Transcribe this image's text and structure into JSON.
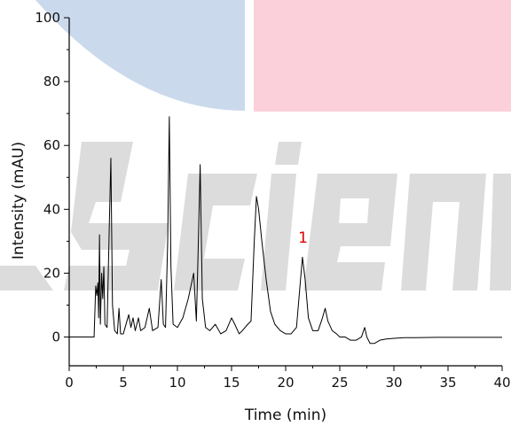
{
  "chart_data": {
    "type": "line",
    "xlabel": "Time (min)",
    "ylabel": "Intensity (mAU)",
    "xlim": [
      0,
      40
    ],
    "ylim": [
      -9,
      100
    ],
    "x_ticks": [
      0,
      5,
      10,
      15,
      20,
      25,
      30,
      35,
      40
    ],
    "y_ticks": [
      0,
      20,
      40,
      60,
      80,
      100
    ],
    "grid": false,
    "legend": "none",
    "line_color": "#000000",
    "annotations": [
      {
        "text": "1",
        "x": 21.6,
        "y": 29,
        "color": "#e00000"
      }
    ],
    "background_watermark": {
      "colors": [
        "#cbd9ec",
        "#fbd0da",
        "#dcdcdc"
      ]
    },
    "series": [
      {
        "points": [
          [
            0,
            0
          ],
          [
            2.3,
            0
          ],
          [
            2.45,
            16
          ],
          [
            2.55,
            13
          ],
          [
            2.65,
            17
          ],
          [
            2.72,
            6
          ],
          [
            2.8,
            32
          ],
          [
            2.88,
            4
          ],
          [
            3.0,
            20
          ],
          [
            3.1,
            12
          ],
          [
            3.2,
            22
          ],
          [
            3.3,
            4
          ],
          [
            3.5,
            3
          ],
          [
            3.7,
            34
          ],
          [
            3.85,
            56
          ],
          [
            4.0,
            10
          ],
          [
            4.2,
            2
          ],
          [
            4.45,
            1
          ],
          [
            4.6,
            9
          ],
          [
            4.75,
            1
          ],
          [
            5.0,
            1
          ],
          [
            5.5,
            7
          ],
          [
            5.7,
            3
          ],
          [
            5.9,
            6
          ],
          [
            6.1,
            2
          ],
          [
            6.4,
            6
          ],
          [
            6.6,
            2
          ],
          [
            7.0,
            3
          ],
          [
            7.4,
            9
          ],
          [
            7.7,
            2
          ],
          [
            8.2,
            3
          ],
          [
            8.5,
            18
          ],
          [
            8.7,
            4
          ],
          [
            8.9,
            3
          ],
          [
            9.1,
            30
          ],
          [
            9.25,
            69
          ],
          [
            9.4,
            22
          ],
          [
            9.6,
            4
          ],
          [
            10.0,
            3
          ],
          [
            10.5,
            6
          ],
          [
            11.0,
            12
          ],
          [
            11.5,
            20
          ],
          [
            11.75,
            5
          ],
          [
            11.9,
            25
          ],
          [
            12.1,
            54
          ],
          [
            12.3,
            12
          ],
          [
            12.6,
            3
          ],
          [
            13.0,
            2
          ],
          [
            13.5,
            4
          ],
          [
            14.0,
            1
          ],
          [
            14.5,
            2
          ],
          [
            15.0,
            6
          ],
          [
            15.3,
            4
          ],
          [
            15.7,
            1
          ],
          [
            16.0,
            2
          ],
          [
            16.5,
            4
          ],
          [
            16.8,
            5
          ],
          [
            17.1,
            30
          ],
          [
            17.3,
            44
          ],
          [
            17.5,
            40
          ],
          [
            17.8,
            30
          ],
          [
            18.2,
            18
          ],
          [
            18.6,
            8
          ],
          [
            19.0,
            4
          ],
          [
            19.5,
            2
          ],
          [
            20.0,
            1
          ],
          [
            20.5,
            1
          ],
          [
            21.0,
            3
          ],
          [
            21.3,
            15
          ],
          [
            21.55,
            25
          ],
          [
            21.8,
            18
          ],
          [
            22.1,
            6
          ],
          [
            22.5,
            2
          ],
          [
            23.0,
            2
          ],
          [
            23.4,
            6
          ],
          [
            23.65,
            9
          ],
          [
            23.9,
            5
          ],
          [
            24.3,
            2
          ],
          [
            24.7,
            1
          ],
          [
            25.0,
            0
          ],
          [
            25.5,
            0
          ],
          [
            26.0,
            -1
          ],
          [
            26.5,
            -1
          ],
          [
            27.0,
            0
          ],
          [
            27.3,
            3
          ],
          [
            27.5,
            0
          ],
          [
            27.8,
            -2
          ],
          [
            28.2,
            -2
          ],
          [
            28.7,
            -1
          ],
          [
            29.3,
            -0.6
          ],
          [
            30.0,
            -0.4
          ],
          [
            31.0,
            -0.2
          ],
          [
            32.0,
            -0.2
          ],
          [
            34.0,
            -0.1
          ],
          [
            36.0,
            -0.1
          ],
          [
            38.0,
            -0.1
          ],
          [
            40.0,
            -0.1
          ]
        ]
      }
    ]
  }
}
